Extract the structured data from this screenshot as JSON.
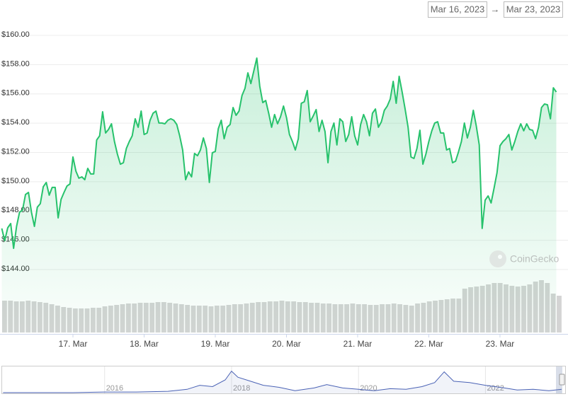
{
  "range": {
    "from": "Mar 16, 2023",
    "arrow": "→",
    "to": "Mar 23, 2023"
  },
  "watermark": "CoinGecko",
  "chart_data": {
    "type": "line",
    "grid": true,
    "ylim": [
      144,
      160
    ],
    "yticks": [
      {
        "value": 144,
        "label": "$144.00"
      },
      {
        "value": 146,
        "label": "$146.00"
      },
      {
        "value": 148,
        "label": "$148.00"
      },
      {
        "value": 150,
        "label": "$150.00"
      },
      {
        "value": 152,
        "label": "$152.00"
      },
      {
        "value": 154,
        "label": "$154.00"
      },
      {
        "value": 156,
        "label": "$156.00"
      },
      {
        "value": 158,
        "label": "$158.00"
      },
      {
        "value": 160,
        "label": "$160.00"
      }
    ],
    "xlim": [
      0,
      189
    ],
    "xticks": [
      {
        "value": 24,
        "label": "17. Mar"
      },
      {
        "value": 48,
        "label": "18. Mar"
      },
      {
        "value": 72,
        "label": "19. Mar"
      },
      {
        "value": 96,
        "label": "20. Mar"
      },
      {
        "value": 120,
        "label": "21. Mar"
      },
      {
        "value": 144,
        "label": "22. Mar"
      },
      {
        "value": 168,
        "label": "23. Mar"
      }
    ],
    "series": [
      {
        "color": "#27c26c",
        "values": [
          146.81,
          145.98,
          146.85,
          147.14,
          145.45,
          146.95,
          147.92,
          148.06,
          149.13,
          149.27,
          147.92,
          146.95,
          148.26,
          148.5,
          149.66,
          149.95,
          149.08,
          149.61,
          149.61,
          147.53,
          148.79,
          149.27,
          149.71,
          149.85,
          151.69,
          150.72,
          150.24,
          150.33,
          150.14,
          150.91,
          150.53,
          150.53,
          152.85,
          153.14,
          154.78,
          153.33,
          153.57,
          153.96,
          152.75,
          151.88,
          151.2,
          151.3,
          152.27,
          152.75,
          153.14,
          154.3,
          153.72,
          154.83,
          153.23,
          153.33,
          154.2,
          154.68,
          154.83,
          154.01,
          154.01,
          153.96,
          154.2,
          154.3,
          154.2,
          153.91,
          153.14,
          152.17,
          150.14,
          150.67,
          150.33,
          151.93,
          151.78,
          152.17,
          152.99,
          152.27,
          149.95,
          151.98,
          152.07,
          153.62,
          154.2,
          152.94,
          153.72,
          153.91,
          155.07,
          154.54,
          154.83,
          155.89,
          156.38,
          157.44,
          156.71,
          157.58,
          158.45,
          156.52,
          155.41,
          155.55,
          154.68,
          153.72,
          154.59,
          153.96,
          154.44,
          155.17,
          154.39,
          153.23,
          152.75,
          152.17,
          152.94,
          155.36,
          155.46,
          156.23,
          154.1,
          154.49,
          154.93,
          153.43,
          154.2,
          153.43,
          151.3,
          153.43,
          154.01,
          152.51,
          154.3,
          154.1,
          152.75,
          153.23,
          154.44,
          153.14,
          152.51,
          153.91,
          154.59,
          154.1,
          153.14,
          154.68,
          154.97,
          153.72,
          154.1,
          154.88,
          155.17,
          155.65,
          156.86,
          155.36,
          157.2,
          156.13,
          154.97,
          153.72,
          151.69,
          151.59,
          152.27,
          153.52,
          151.2,
          151.88,
          152.75,
          153.48,
          154.01,
          154.1,
          153.33,
          153.33,
          152.17,
          152.27,
          151.3,
          151.4,
          152.03,
          152.75,
          154.01,
          152.99,
          153.72,
          154.88,
          153.81,
          152.51,
          146.81,
          148.74,
          149.03,
          148.55,
          149.56,
          150.62,
          152.46,
          152.75,
          152.94,
          153.23,
          152.17,
          152.75,
          153.43,
          153.96,
          153.48,
          153.96,
          153.57,
          153.52,
          152.94,
          153.72,
          155.07,
          155.31,
          155.26,
          154.3,
          156.42,
          156.13
        ]
      }
    ],
    "volume": {
      "color": "#d4d4d4",
      "values": [
        45,
        45,
        44,
        44,
        45,
        44,
        43,
        42,
        40,
        38,
        36,
        35,
        34,
        34,
        34,
        35,
        35,
        37,
        38,
        39,
        40,
        41,
        41,
        42,
        42,
        42,
        43,
        43,
        42,
        41,
        40,
        39,
        38,
        38,
        38,
        37,
        38,
        38,
        39,
        40,
        40,
        41,
        42,
        43,
        43,
        44,
        44,
        45,
        44,
        44,
        43,
        43,
        42,
        42,
        41,
        41,
        40,
        40,
        40,
        41,
        40,
        40,
        39,
        39,
        40,
        40,
        41,
        40,
        39,
        38,
        41,
        42,
        44,
        45,
        46,
        47,
        48,
        48,
        62,
        64,
        65,
        66,
        68,
        70,
        70,
        68,
        66,
        65,
        66,
        68,
        72,
        74,
        70,
        55,
        52
      ]
    },
    "navigator": {
      "color": "#4a62b5",
      "x": [
        2014.4,
        2015,
        2015.5,
        2016,
        2016.5,
        2017,
        2017.3,
        2017.5,
        2017.7,
        2017.9,
        2018,
        2018.1,
        2018.3,
        2018.5,
        2018.75,
        2019,
        2019.3,
        2019.5,
        2019.75,
        2020,
        2020.25,
        2020.5,
        2020.75,
        2021,
        2021.2,
        2021.35,
        2021.5,
        2021.75,
        2022,
        2022.3,
        2022.5,
        2022.75,
        2023,
        2023.2
      ],
      "values": [
        1,
        1,
        1,
        2,
        2,
        3,
        6,
        12,
        10,
        20,
        33,
        24,
        18,
        12,
        9,
        4,
        8,
        13,
        8,
        6,
        4,
        7,
        6,
        10,
        16,
        32,
        18,
        16,
        12,
        8,
        5,
        6,
        4,
        6
      ],
      "xlim": [
        2014.38,
        2023.2
      ],
      "ylim": [
        0,
        40
      ],
      "xticks": [
        2016,
        2018,
        2020,
        2022
      ]
    }
  }
}
